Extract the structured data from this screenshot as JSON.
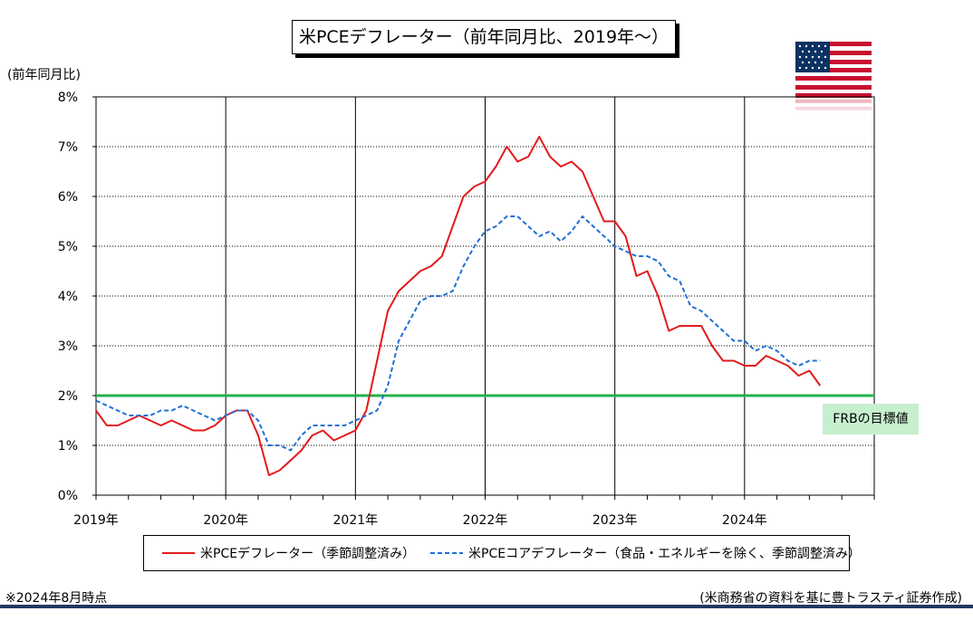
{
  "title": "米PCEデフレーター（前年同月比、2019年～）",
  "y_unit_label": "(前年同月比)",
  "frb_label": "FRBの目標値",
  "footnote_left": "※2024年8月時点",
  "footnote_right": "(米商務省の資料を基に豊トラスティ証券作成)",
  "colors": {
    "headline": "#e31a1c",
    "core": "#1f6fd6",
    "target": "#22b14c",
    "grid": "#000000",
    "bottom_bar": "#1f3864"
  },
  "chart_data": {
    "type": "line",
    "title": "米PCEデフレーター（前年同月比、2019年～）",
    "ylabel": "(前年同月比)",
    "xlabel": "",
    "ylim": [
      0,
      8
    ],
    "y_ticks": [
      "0%",
      "1%",
      "2%",
      "3%",
      "4%",
      "5%",
      "6%",
      "7%",
      "8%"
    ],
    "x_ticks": [
      "2019年",
      "2020年",
      "2021年",
      "2022年",
      "2023年",
      "2024年"
    ],
    "x_range": [
      "2019-01",
      "2024-12"
    ],
    "grid": true,
    "legend": "bottom",
    "target_line": {
      "value": 2.0,
      "label": "FRBの目標値"
    },
    "series": [
      {
        "name": "米PCEデフレーター（季節調整済み）",
        "style": "solid",
        "start": "2019-01",
        "values": [
          1.7,
          1.4,
          1.4,
          1.5,
          1.6,
          1.5,
          1.4,
          1.5,
          1.4,
          1.3,
          1.3,
          1.4,
          1.6,
          1.7,
          1.7,
          1.2,
          0.4,
          0.5,
          0.7,
          0.9,
          1.2,
          1.3,
          1.1,
          1.2,
          1.3,
          1.7,
          2.7,
          3.7,
          4.1,
          4.3,
          4.5,
          4.6,
          4.8,
          5.4,
          6.0,
          6.2,
          6.3,
          6.6,
          7.0,
          6.7,
          6.8,
          7.2,
          6.8,
          6.6,
          6.7,
          6.5,
          6.0,
          5.5,
          5.5,
          5.2,
          4.4,
          4.5,
          4.0,
          3.3,
          3.4,
          3.4,
          3.4,
          3.0,
          2.7,
          2.7,
          2.6,
          2.6,
          2.8,
          2.7,
          2.6,
          2.4,
          2.5,
          2.2
        ]
      },
      {
        "name": "米PCEコアデフレーター（食品・エネルギーを除く、季節調整済み）",
        "style": "dashed",
        "start": "2019-01",
        "values": [
          1.9,
          1.8,
          1.7,
          1.6,
          1.6,
          1.6,
          1.7,
          1.7,
          1.8,
          1.7,
          1.6,
          1.5,
          1.6,
          1.7,
          1.7,
          1.5,
          1.0,
          1.0,
          0.9,
          1.2,
          1.4,
          1.4,
          1.4,
          1.4,
          1.5,
          1.6,
          1.7,
          2.2,
          3.1,
          3.5,
          3.9,
          4.0,
          4.0,
          4.1,
          4.6,
          5.0,
          5.3,
          5.4,
          5.6,
          5.6,
          5.4,
          5.2,
          5.3,
          5.1,
          5.3,
          5.6,
          5.4,
          5.2,
          5.0,
          4.9,
          4.8,
          4.8,
          4.7,
          4.4,
          4.3,
          3.8,
          3.7,
          3.5,
          3.3,
          3.1,
          3.1,
          2.9,
          3.0,
          2.9,
          2.7,
          2.6,
          2.7,
          2.7
        ]
      }
    ]
  },
  "legend": {
    "headline_label": "米PCEデフレーター（季節調整済み）",
    "core_label": "米PCEコアデフレーター（食品・エネルギーを除く、季節調整済み）"
  }
}
